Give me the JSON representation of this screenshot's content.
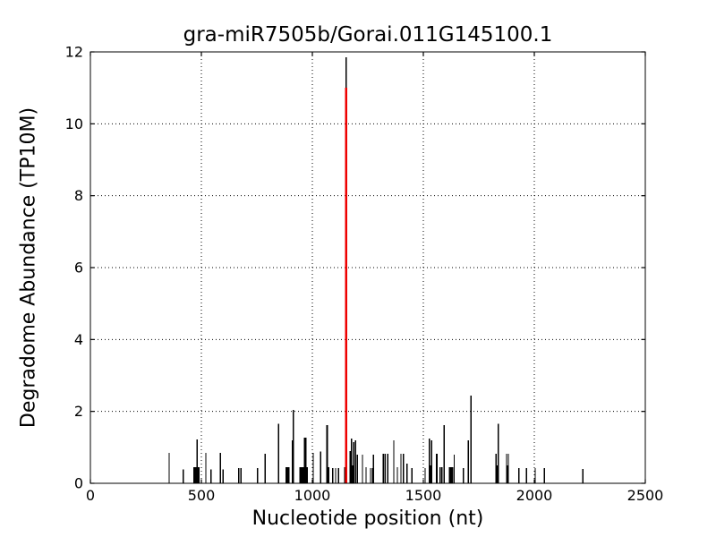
{
  "chart_data": {
    "type": "bar",
    "title": "gra-miR7505b/Gorai.011G145100.1",
    "xlabel": "Nucleotide position (nt)",
    "ylabel": "Degradome Abundance (TP10M)",
    "xlim": [
      0,
      2500
    ],
    "ylim": [
      0,
      12
    ],
    "x_ticks": [
      0,
      500,
      1000,
      1500,
      2000,
      2500
    ],
    "y_ticks": [
      0,
      2,
      4,
      6,
      8,
      10,
      12
    ],
    "grid": "dotted",
    "legend": "none",
    "colors": {
      "bars": "#000000",
      "highlight": "#ee0000",
      "grid": "#000000",
      "frame": "#000000"
    },
    "series": [
      {
        "name": "bars-black",
        "color": "#000000",
        "points": [
          [
            355,
            0.85
          ],
          [
            419,
            0.38
          ],
          [
            470,
            0.45,
            3
          ],
          [
            476,
            0.45,
            3
          ],
          [
            481,
            1.22
          ],
          [
            486,
            0.45,
            3
          ],
          [
            520,
            0.85
          ],
          [
            544,
            0.38
          ],
          [
            585,
            0.85
          ],
          [
            597,
            0.38
          ],
          [
            669,
            0.42
          ],
          [
            679,
            0.42
          ],
          [
            753,
            0.42
          ],
          [
            787,
            0.82
          ],
          [
            847,
            1.65
          ],
          [
            883,
            0.45,
            2
          ],
          [
            888,
            0.45,
            2
          ],
          [
            893,
            0.45,
            2
          ],
          [
            911,
            1.2,
            2
          ],
          [
            915,
            2.04
          ],
          [
            945,
            0.45,
            2
          ],
          [
            950,
            0.45,
            2
          ],
          [
            955,
            0.45,
            2
          ],
          [
            960,
            0.45,
            2
          ],
          [
            965,
            1.27,
            2
          ],
          [
            970,
            1.27,
            2
          ],
          [
            975,
            0.45,
            2
          ],
          [
            1004,
            0.85
          ],
          [
            1038,
            0.88
          ],
          [
            1067,
            1.62,
            2
          ],
          [
            1072,
            0.45,
            2
          ],
          [
            1091,
            0.42
          ],
          [
            1105,
            0.42
          ],
          [
            1118,
            0.42
          ],
          [
            1145,
            0.45
          ],
          [
            1153,
            11.85
          ],
          [
            1172,
            0.9,
            2
          ],
          [
            1177,
            1.25
          ],
          [
            1183,
            0.5,
            2
          ],
          [
            1187,
            1.15
          ],
          [
            1194,
            1.2
          ],
          [
            1202,
            0.8
          ],
          [
            1226,
            0.8
          ],
          [
            1242,
            0.45
          ],
          [
            1262,
            0.42
          ],
          [
            1270,
            0.42
          ],
          [
            1276,
            0.8
          ],
          [
            1319,
            0.82
          ],
          [
            1327,
            0.82
          ],
          [
            1339,
            0.82
          ],
          [
            1367,
            1.2
          ],
          [
            1383,
            0.45
          ],
          [
            1399,
            0.82
          ],
          [
            1411,
            0.82
          ],
          [
            1427,
            0.55
          ],
          [
            1448,
            0.42
          ],
          [
            1508,
            0.42
          ],
          [
            1528,
            1.25
          ],
          [
            1533,
            0.5,
            2
          ],
          [
            1537,
            1.2
          ],
          [
            1560,
            0.82,
            2
          ],
          [
            1576,
            0.45
          ],
          [
            1584,
            0.45
          ],
          [
            1594,
            1.62
          ],
          [
            1617,
            0.45
          ],
          [
            1622,
            0.45,
            2
          ],
          [
            1627,
            0.45,
            2
          ],
          [
            1632,
            0.45,
            2
          ],
          [
            1639,
            0.8
          ],
          [
            1681,
            0.42
          ],
          [
            1702,
            1.2
          ],
          [
            1714,
            2.44
          ],
          [
            1827,
            0.82
          ],
          [
            1832,
            0.5
          ],
          [
            1838,
            1.65
          ],
          [
            1875,
            0.82
          ],
          [
            1879,
            0.5
          ],
          [
            1883,
            0.82
          ],
          [
            1931,
            0.42
          ],
          [
            1964,
            0.42
          ],
          [
            2004,
            0.42
          ],
          [
            2045,
            0.42
          ],
          [
            2218,
            0.4
          ]
        ]
      },
      {
        "name": "bar-red-highlight",
        "color": "#ee0000",
        "points": [
          [
            1153,
            11.0,
            2.5
          ]
        ]
      }
    ]
  }
}
